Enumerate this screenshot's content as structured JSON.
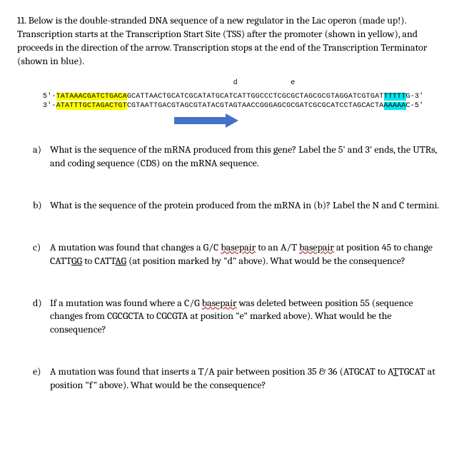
{
  "question_stem": "11. Below is the double-stranded DNA sequence of a new regulator in the Lac operon (made up!). Transcription starts at the Transcription Start Site (TSS) after the promoter (shown in yellow), and proceeds in the direction of the arrow. Transcription stops at the end of the Transcription Terminator (shown in blue).",
  "markers": {
    "prefix": "                                           ",
    "d": "d",
    "gap": "            ",
    "e": "e"
  },
  "seq": {
    "top_prefix": "5'-",
    "top_yellow": "TATAAACGATCTGACA",
    "top_mid": "GCATTAACTGCATCGCATATGCATCATTGGCCCTCGCGCTAGCGCGTAGGATCGTGAT",
    "top_cyan": "TTTTT",
    "top_suffix": "G-3'",
    "bot_prefix": "3'-",
    "bot_yellow": "ATATTTGCTAGACTGT",
    "bot_mid": "CGTAATTGACGTAGCGTATACGTAGTAACCGGGAGCGCGATCGCGCATCCTAGCACTA",
    "bot_cyan": "AAAAA",
    "bot_suffix": "C-5'"
  },
  "parts": {
    "a": {
      "label": "a)",
      "text_before": "What is the sequence of the mRNA produced from this gene? Label the 5' and 3' ends, the UTRs, and coding sequence (CDS) on the mRNA sequence.",
      "sq1": "",
      "mid": "",
      "sq2": "",
      "after": ""
    },
    "b": {
      "label": "b)",
      "text_before": "What is the sequence of the protein produced from the mRNA in (b)? Label the N and C termini.",
      "sq1": "",
      "mid": "",
      "sq2": "",
      "after": ""
    },
    "c": {
      "label": "c)",
      "text_before": "A mutation was found that changes a G/C ",
      "sq1": "basepair",
      "mid": " to an A/T ",
      "sq2": "basepair",
      "after": " at position 45 to change CATTGG to CATTAG (at position marked by \"d\" above). What would be the consequence?"
    },
    "d": {
      "label": "d)",
      "text_before": "If a mutation was found where a C/G ",
      "sq1": "basepair",
      "mid": " was deleted between position 55 (sequence changes from CGCGCTA to CGCGTA at position \"e\" marked above). What would be the consequence?",
      "sq2": "",
      "after": ""
    },
    "e": {
      "label": "e)",
      "text_before": "A mutation was found that inserts a T/A pair between position 35 & 36 (ATGCAT to ATTGCAT  at position \"f\" above). What would be the consequence?",
      "sq1": "",
      "mid": "",
      "sq2": "",
      "after": ""
    }
  },
  "underlines": {
    "c_gg": "GG",
    "c_ag": "AG",
    "e_tt": "T"
  }
}
